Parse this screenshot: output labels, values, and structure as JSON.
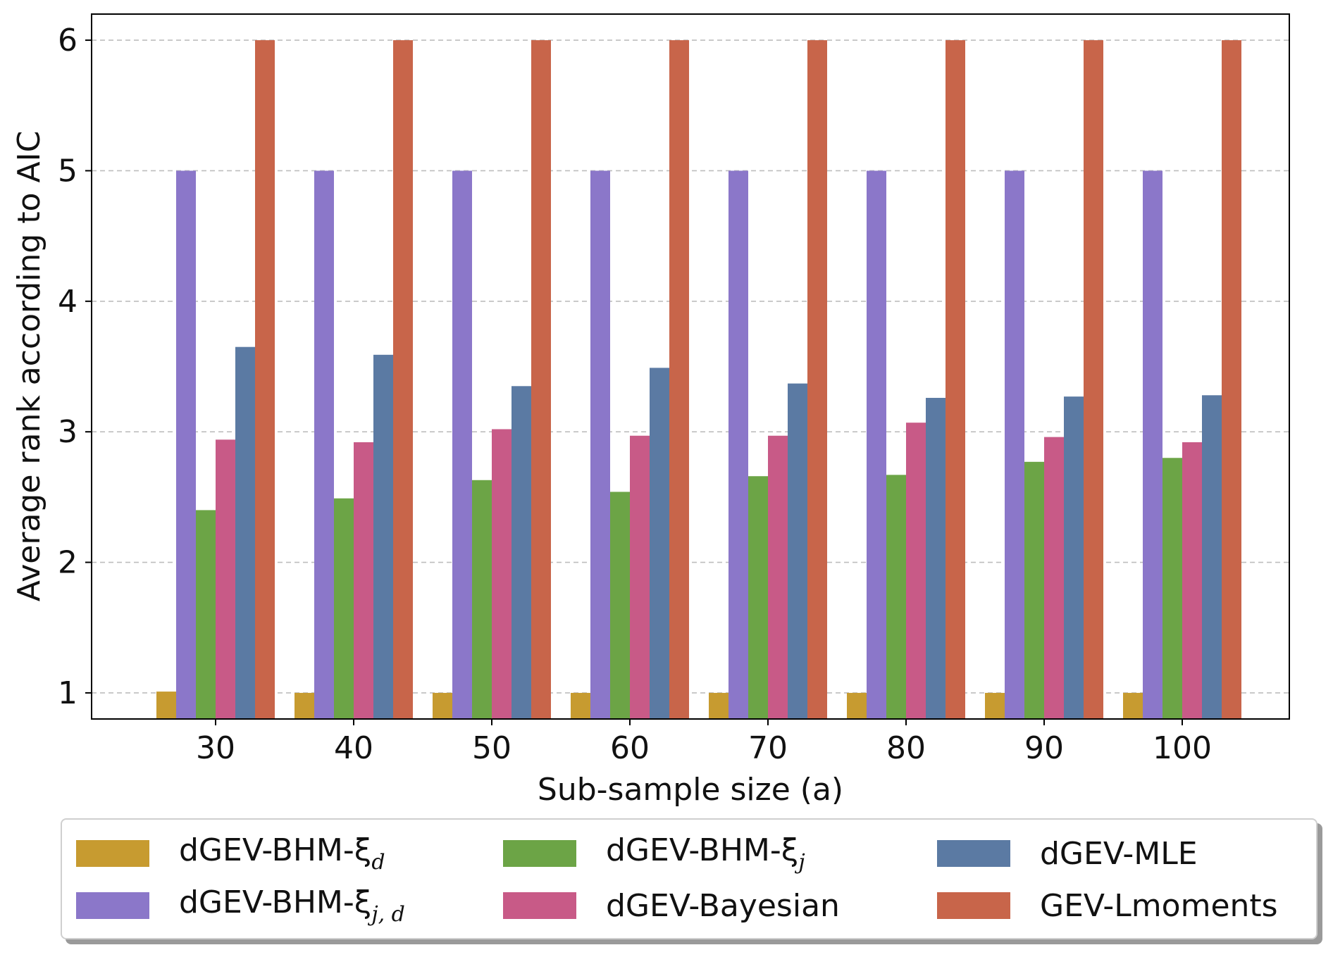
{
  "chart_data": {
    "type": "bar",
    "xlabel": "Sub-sample size (a)",
    "ylabel": "Average rank according to AIC",
    "categories": [
      "30",
      "40",
      "50",
      "60",
      "70",
      "80",
      "90",
      "100"
    ],
    "ylim": [
      0.8,
      6.2
    ],
    "yticks": [
      "1",
      "2",
      "3",
      "4",
      "5",
      "6"
    ],
    "grid": "horizontal dashed",
    "legend_position": "bottom",
    "series": [
      {
        "name": "dGEV-BHM-ξ",
        "name_sub": "d",
        "color": "#c79b30",
        "values": [
          1.01,
          1.0,
          1.0,
          1.0,
          1.0,
          1.0,
          1.0,
          1.0
        ]
      },
      {
        "name": "dGEV-BHM-ξ",
        "name_sub": "j, d",
        "color": "#8b77c9",
        "values": [
          5,
          5,
          5,
          5,
          5,
          5,
          5,
          5
        ]
      },
      {
        "name": "dGEV-BHM-ξ",
        "name_sub": "j",
        "color": "#6ca446",
        "values": [
          2.4,
          2.49,
          2.63,
          2.54,
          2.66,
          2.67,
          2.77,
          2.8
        ]
      },
      {
        "name": "dGEV-Bayesian",
        "name_sub": "",
        "color": "#c85a87",
        "values": [
          2.94,
          2.92,
          3.02,
          2.97,
          2.97,
          3.07,
          2.96,
          2.92
        ]
      },
      {
        "name": "dGEV-MLE",
        "name_sub": "",
        "color": "#5b7aa3",
        "values": [
          3.65,
          3.59,
          3.35,
          3.49,
          3.37,
          3.26,
          3.27,
          3.28
        ]
      },
      {
        "name": "GEV-Lmoments",
        "name_sub": "",
        "color": "#c8654a",
        "values": [
          6,
          6,
          6,
          6,
          6,
          6,
          6,
          6
        ]
      }
    ]
  }
}
